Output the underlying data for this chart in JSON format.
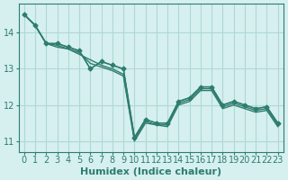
{
  "xlabel": "Humidex (Indice chaleur)",
  "ylabel": "",
  "background_color": "#d6f0ef",
  "line_color": "#2e7d6e",
  "grid_color": "#b0d8d4",
  "series": [
    [
      14.5,
      14.2,
      13.7,
      13.7,
      13.6,
      13.5,
      13.0,
      13.2,
      13.1,
      13.0,
      11.1,
      11.6,
      11.5,
      11.5,
      12.1,
      12.2,
      12.5,
      12.5,
      12.0,
      12.1,
      12.0,
      11.9,
      11.95,
      11.5
    ],
    [
      14.5,
      14.2,
      13.7,
      13.6,
      13.55,
      13.4,
      13.25,
      13.1,
      13.0,
      12.85,
      11.05,
      11.55,
      11.45,
      11.45,
      12.05,
      12.15,
      12.45,
      12.45,
      11.95,
      12.05,
      11.95,
      11.85,
      11.9,
      11.45
    ],
    [
      14.5,
      14.2,
      13.7,
      13.65,
      13.55,
      13.45,
      13.15,
      13.05,
      12.95,
      12.8,
      11.0,
      11.5,
      11.45,
      11.4,
      12.0,
      12.1,
      12.4,
      12.4,
      11.9,
      12.0,
      11.9,
      11.8,
      11.85,
      11.4
    ]
  ],
  "marker_series": [
    [
      14.5,
      14.2,
      13.7,
      13.7,
      13.6,
      13.5,
      13.0,
      13.2,
      13.1,
      13.0,
      11.1,
      11.6,
      11.5,
      11.5,
      12.1,
      12.2,
      12.5,
      12.5,
      12.0,
      12.1,
      12.0,
      11.9,
      11.95,
      11.5
    ]
  ],
  "xlim": [
    -0.5,
    23.5
  ],
  "ylim": [
    10.7,
    14.8
  ],
  "xticks": [
    0,
    1,
    2,
    3,
    4,
    5,
    6,
    7,
    8,
    9,
    10,
    11,
    12,
    13,
    14,
    15,
    16,
    17,
    18,
    19,
    20,
    21,
    22,
    23
  ],
  "yticks": [
    11,
    12,
    13,
    14
  ],
  "tick_fontsize": 7,
  "xlabel_fontsize": 8
}
